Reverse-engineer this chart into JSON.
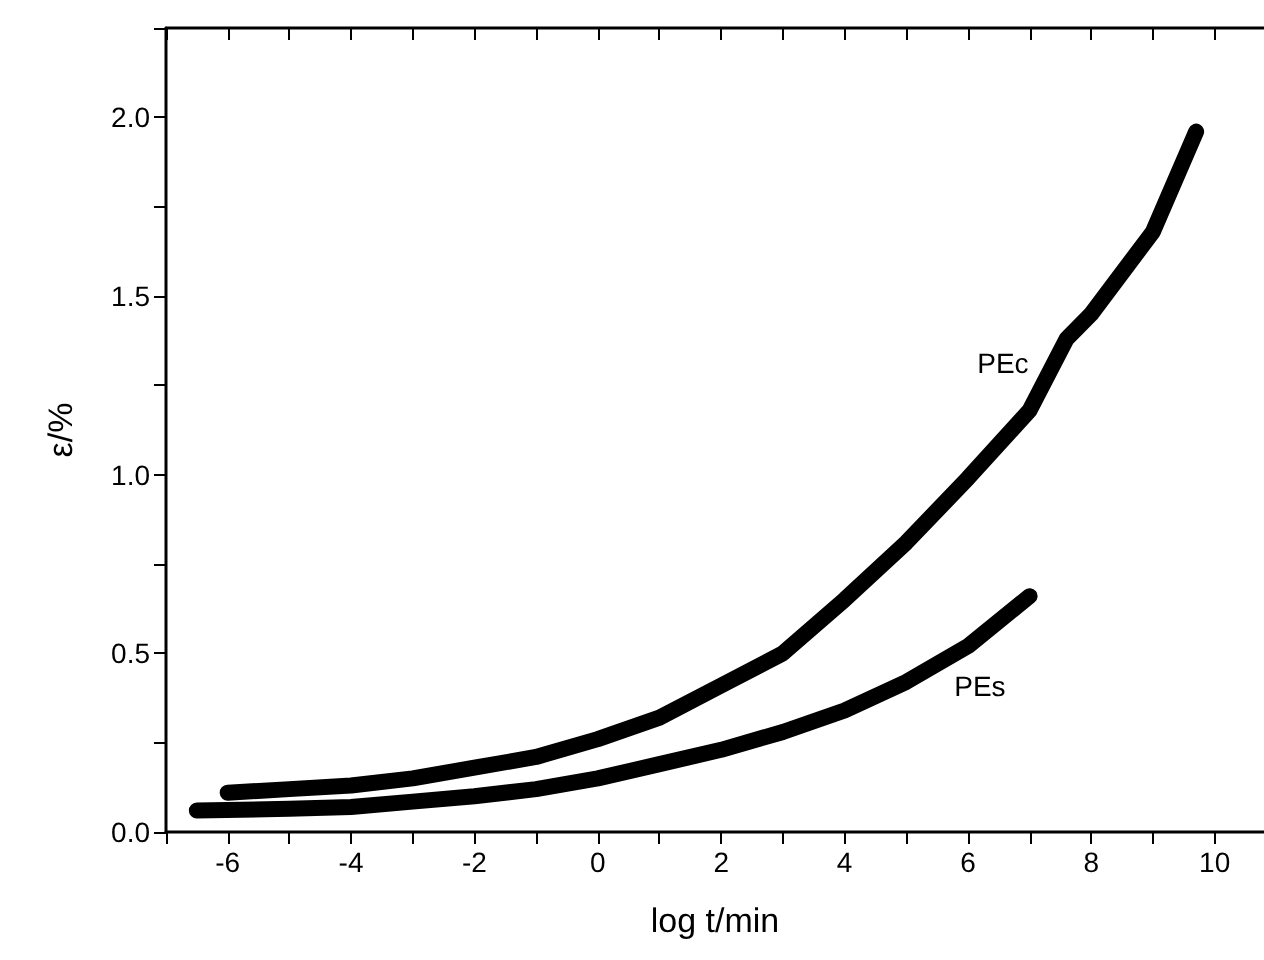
{
  "chart_data": {
    "type": "line",
    "xlabel": "log t/min",
    "ylabel": "ε/%",
    "xlim": [
      -7,
      10.8
    ],
    "xticks": [
      -6,
      -4,
      -2,
      0,
      2,
      4,
      6,
      8,
      10
    ],
    "ylim": [
      0,
      2.25
    ],
    "yticks": [
      {
        "value": 0,
        "label": "0.0"
      },
      0.5,
      {
        "value": 1,
        "label": "1.0"
      },
      1.5,
      {
        "value": 2,
        "label": "2.0"
      }
    ],
    "grid": false,
    "legend": false,
    "marker": "none",
    "line_style": "solid",
    "series": [
      {
        "name": "PEc",
        "color": "#000000",
        "x": [
          -6,
          -5,
          -4,
          -3,
          -2,
          -1,
          0,
          1,
          2,
          3,
          4,
          5,
          6,
          7,
          7.6,
          8,
          9,
          9.7
        ],
        "values": [
          0.11,
          0.12,
          0.13,
          0.15,
          0.18,
          0.21,
          0.26,
          0.32,
          0.41,
          0.5,
          0.65,
          0.81,
          0.99,
          1.18,
          1.38,
          1.45,
          1.68,
          1.96
        ]
      },
      {
        "name": "PEs",
        "color": "#000000",
        "x": [
          -6.5,
          -5,
          -4,
          -3,
          -2,
          -1,
          0,
          1,
          2,
          3,
          4,
          5,
          6,
          7
        ],
        "values": [
          0.06,
          0.065,
          0.07,
          0.085,
          0.1,
          0.12,
          0.15,
          0.19,
          0.23,
          0.28,
          0.34,
          0.42,
          0.52,
          0.66
        ]
      }
    ]
  }
}
